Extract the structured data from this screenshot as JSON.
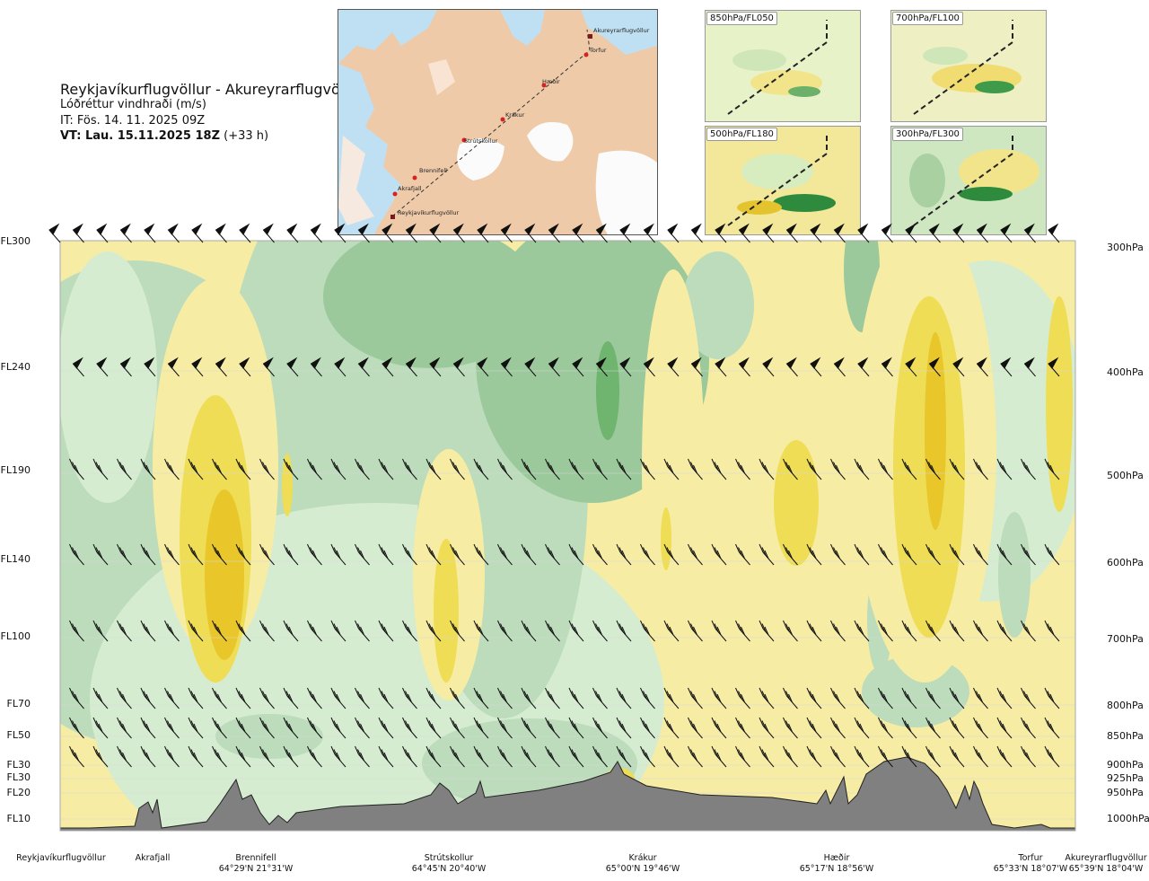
{
  "header": {
    "title": "Reykjavíkurflugvöllur - Akureyrarflugvöllur",
    "subtitle": "Lóðréttur vindhraði (m/s)",
    "issue_time": "IT: Fös. 14. 11. 2025 09Z",
    "valid_time_bold": "VT: Lau. 15.11.2025 18Z",
    "valid_time_offset": " (+33 h)"
  },
  "map": {
    "places": [
      "Akureyrarflugvöllur",
      "Torfur",
      "Hæðir",
      "Krákur",
      "Strútskollur",
      "Brennifell",
      "Akrafjall",
      "Reykjavíkurflugvöllur"
    ]
  },
  "insets": [
    {
      "label": "850hPa/FL050"
    },
    {
      "label": "700hPa/FL100"
    },
    {
      "label": "500hPa/FL180"
    },
    {
      "label": "300hPa/FL300"
    }
  ],
  "colors": {
    "strong_down": "#6fb46f",
    "down2": "#9cc99c",
    "down1": "#bcdcbc",
    "weak_down": "#d5ecd0",
    "near_zero_down": "#eaf6e6",
    "near_zero_up": "#fbf6d2",
    "weak_up": "#f7eca4",
    "up1": "#eedd55",
    "up2": "#e9c62a",
    "terrain": "#808080"
  },
  "chart_data": {
    "type": "heatmap",
    "variable": "Lóðréttur vindhraði (m/s)",
    "left_axis_labels": [
      "FL300",
      "FL240",
      "FL190",
      "FL140",
      "FL100",
      "FL70",
      "FL50",
      "FL30",
      "FL30",
      "FL20",
      "FL10"
    ],
    "right_axis_labels": [
      "300hPa",
      "400hPa",
      "500hPa",
      "600hPa",
      "700hPa",
      "800hPa",
      "850hPa",
      "900hPa",
      "925hPa",
      "950hPa",
      "1000hPa"
    ],
    "pressure_levels_hPa": [
      300,
      400,
      500,
      600,
      700,
      800,
      850,
      900,
      925,
      950,
      1000
    ],
    "waypoints": [
      {
        "name": "Reykjavíkurflugvöllur",
        "coord": ""
      },
      {
        "name": "Akrafjall",
        "coord": ""
      },
      {
        "name": "Brennifell",
        "coord": "64°29'N 21°31'W"
      },
      {
        "name": "Strútskollur",
        "coord": "64°45'N 20°40'W"
      },
      {
        "name": "Krákur",
        "coord": "65°00'N 19°46'W"
      },
      {
        "name": "Hæðir",
        "coord": "65°17'N 18°56'W"
      },
      {
        "name": "Torfur",
        "coord": "65°33'N 18°07'W"
      },
      {
        "name": "Akureyrarflugvöllur",
        "coord": "65°39'N 18°04'W"
      }
    ]
  }
}
